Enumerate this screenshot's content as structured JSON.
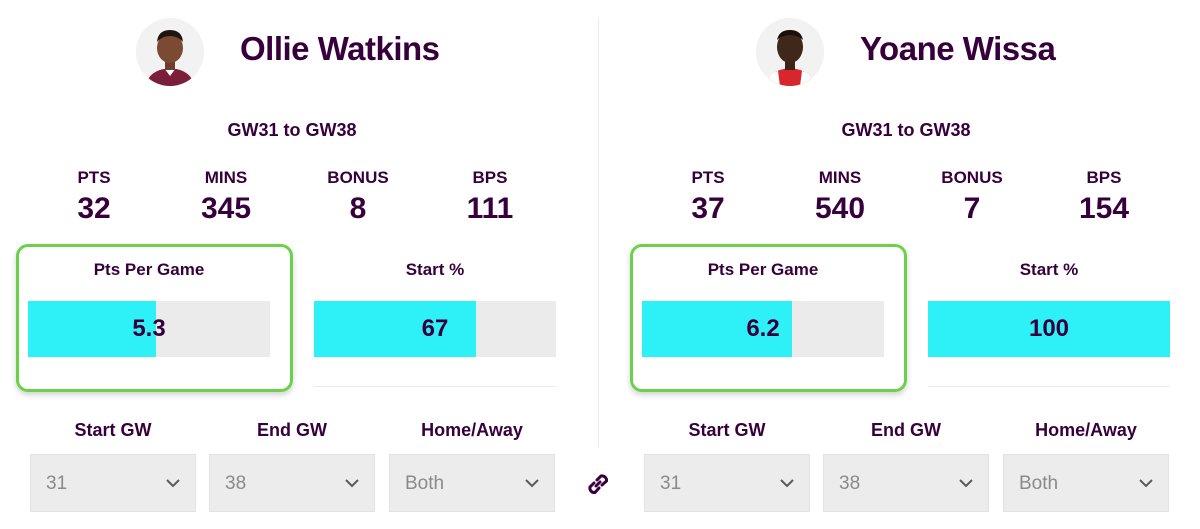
{
  "players": [
    {
      "name": "Ollie Watkins",
      "range": "GW31 to GW38",
      "stats": [
        {
          "label": "PTS",
          "value": "32"
        },
        {
          "label": "MINS",
          "value": "345"
        },
        {
          "label": "BONUS",
          "value": "8"
        },
        {
          "label": "BPS",
          "value": "111"
        }
      ],
      "metrics": [
        {
          "label": "Pts Per Game",
          "value": "5.3",
          "fill_fraction": 0.53
        },
        {
          "label": "Start %",
          "value": "67",
          "fill_fraction": 0.67
        }
      ],
      "filters": [
        {
          "label": "Start GW",
          "value": "31"
        },
        {
          "label": "End GW",
          "value": "38"
        },
        {
          "label": "Home/Away",
          "value": "Both"
        }
      ],
      "shirt_color": "#7a1e3a"
    },
    {
      "name": "Yoane Wissa",
      "range": "GW31 to GW38",
      "stats": [
        {
          "label": "PTS",
          "value": "37"
        },
        {
          "label": "MINS",
          "value": "540"
        },
        {
          "label": "BONUS",
          "value": "7"
        },
        {
          "label": "BPS",
          "value": "154"
        }
      ],
      "metrics": [
        {
          "label": "Pts Per Game",
          "value": "6.2",
          "fill_fraction": 0.62
        },
        {
          "label": "Start %",
          "value": "100",
          "fill_fraction": 1.0
        }
      ],
      "filters": [
        {
          "label": "Start GW",
          "value": "31"
        },
        {
          "label": "End GW",
          "value": "38"
        },
        {
          "label": "Home/Away",
          "value": "Both"
        }
      ],
      "shirt_color": "#d8262e"
    }
  ],
  "colors": {
    "text": "#37003c",
    "bar_fill": "#2ef0f7",
    "bar_track": "#ebebeb",
    "highlight": "#6cd14a"
  },
  "icons": {
    "link": "link-icon",
    "dropdown": "chevron-down-icon"
  }
}
